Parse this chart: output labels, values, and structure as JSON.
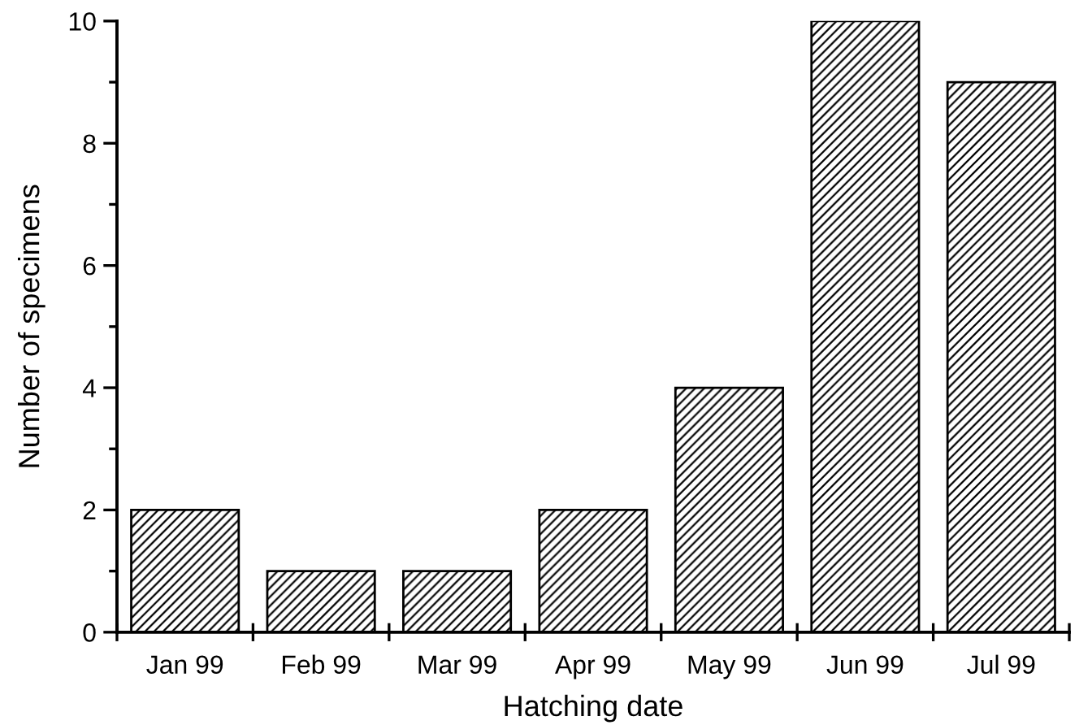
{
  "chart_data": {
    "type": "bar",
    "xlabel": "Hatching date",
    "ylabel": "Number of specimens",
    "categories": [
      "Jan 99",
      "Feb 99",
      "Mar 99",
      "Apr 99",
      "May 99",
      "Jun 99",
      "Jul 99"
    ],
    "values": [
      2,
      1,
      1,
      2,
      4,
      10,
      9
    ],
    "color": "#000000",
    "ylim": [
      0,
      10
    ],
    "yticks": [
      0,
      {
        "value": 1,
        "label": null
      },
      2,
      {
        "value": 3,
        "label": null
      },
      4,
      {
        "value": 5,
        "label": null
      },
      6,
      {
        "value": 7,
        "label": null
      },
      8,
      {
        "value": 9,
        "label": null
      },
      10
    ],
    "grid": false,
    "legend": false
  }
}
